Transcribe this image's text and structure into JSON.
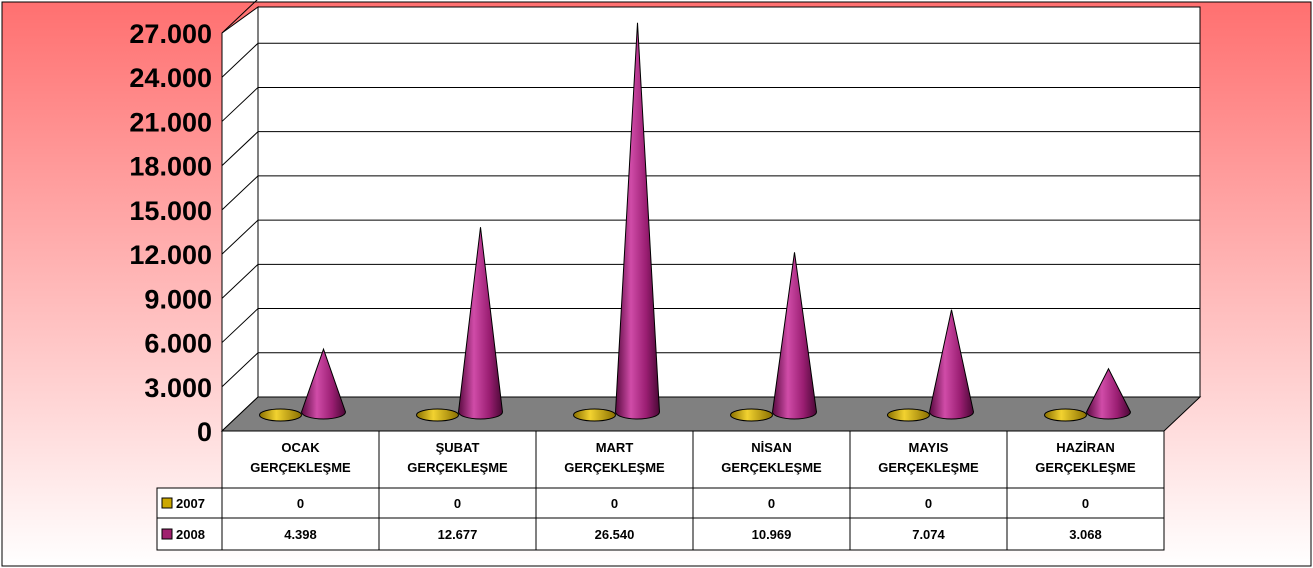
{
  "chart_data": {
    "type": "bar",
    "style": "3d-cone",
    "categories": [
      "OCAK GERÇEKLEŞME",
      "ŞUBAT GERÇEKLEŞME",
      "MART GERÇEKLEŞME",
      "NİSAN GERÇEKLEŞME",
      "MAYIS GERÇEKLEŞME",
      "HAZİRAN GERÇEKLEŞME"
    ],
    "category_lines": [
      [
        "OCAK",
        "GERÇEKLEŞME"
      ],
      [
        "ŞUBAT",
        "GERÇEKLEŞME"
      ],
      [
        "MART",
        "GERÇEKLEŞME"
      ],
      [
        "NİSAN",
        "GERÇEKLEŞME"
      ],
      [
        "MAYIS",
        "GERÇEKLEŞME"
      ],
      [
        "HAZİRAN",
        "GERÇEKLEŞME"
      ]
    ],
    "series": [
      {
        "name": "2007",
        "values": [
          0,
          0,
          0,
          0,
          0,
          0
        ],
        "labels": [
          "0",
          "0",
          "0",
          "0",
          "0",
          "0"
        ],
        "color": "#CCA800"
      },
      {
        "name": "2008",
        "values": [
          4398,
          12677,
          26540,
          10969,
          7074,
          3068
        ],
        "labels": [
          "4.398",
          "12.677",
          "26.540",
          "10.969",
          "7.074",
          "3.068"
        ],
        "color": "#A0206E"
      }
    ],
    "ylim": [
      0,
      27000
    ],
    "yticks": [
      "0",
      "3.000",
      "6.000",
      "9.000",
      "12.000",
      "15.000",
      "18.000",
      "21.000",
      "24.000",
      "27.000"
    ],
    "grid": true,
    "legend": "data-table",
    "background_colors": [
      "#FF7070",
      "#FFFFFF"
    ],
    "floor_color": "#808080"
  }
}
